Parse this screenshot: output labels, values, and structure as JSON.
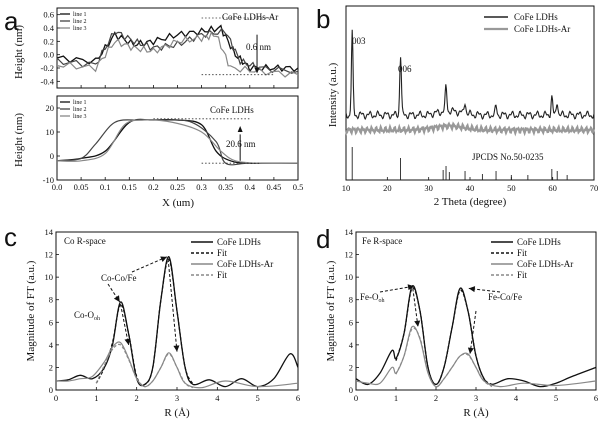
{
  "panels": {
    "a": {
      "letter": "a",
      "xlabel": "X (um)",
      "xticks": [
        "0.0",
        "0.05",
        "0.1",
        "0.15",
        "0.2",
        "0.25",
        "0.3",
        "0.35",
        "0.4",
        "0.45",
        "0.5"
      ],
      "top": {
        "ylabel": "Height (nm)",
        "yticks": [
          "0.6",
          "0.4",
          "0.2",
          "0.0",
          "-0.2",
          "-0.4"
        ],
        "legend": [
          "line 1",
          "line 2",
          "line 3"
        ],
        "title": "CoFe LDHs-Ar",
        "annotation": "0.6 nm"
      },
      "bottom": {
        "ylabel": "Height (nm)",
        "yticks": [
          "20",
          "10",
          "0",
          "-10"
        ],
        "legend": [
          "line 1",
          "line 2",
          "line 3"
        ],
        "title": "CoFe LDHs",
        "annotation": "20.6 nm"
      }
    },
    "b": {
      "letter": "b",
      "xlabel": "2 Theta (degree)",
      "ylabel": "Intensity (a.u.)",
      "xticks": [
        "10",
        "20",
        "30",
        "40",
        "50",
        "60",
        "70"
      ],
      "peaks": [
        "003",
        "006"
      ],
      "legend": [
        "CoFe LDHs",
        "CoFe LDHs-Ar"
      ],
      "ref": "JPCDS No.50-0235"
    },
    "c": {
      "letter": "c",
      "xlabel": "R (Å)",
      "ylabel": "Magnitude of FT (a.u.)",
      "yticks": [
        "0",
        "2",
        "4",
        "6",
        "8",
        "10",
        "12",
        "14"
      ],
      "xticks": [
        "0",
        "1",
        "2",
        "3",
        "4",
        "5",
        "6"
      ],
      "title": "Co  R-space",
      "legend": [
        "CoFe LDHs",
        "Fit",
        "CoFe LDHs-Ar",
        "Fit"
      ],
      "ann1": "Co-Co/Fe",
      "ann2": "Co-O",
      "ann2_sub": "oh"
    },
    "d": {
      "letter": "d",
      "xlabel": "R (Å)",
      "ylabel": "Magnitude of FT (a.u.)",
      "yticks": [
        "0",
        "2",
        "4",
        "6",
        "8",
        "10",
        "12",
        "14"
      ],
      "xticks": [
        "0",
        "1",
        "2",
        "3",
        "4",
        "5",
        "6"
      ],
      "title": "Fe R-space",
      "legend": [
        "CoFe LDHs",
        "Fit",
        "CoFe LDHs-Ar",
        "Fit"
      ],
      "ann1": "Fe-O",
      "ann1_sub": "oh",
      "ann2": "Fe-Co/Fe"
    }
  },
  "chart_data": [
    {
      "type": "line",
      "panel": "a-top",
      "title": "CoFe LDHs-Ar",
      "xlabel": "X (um)",
      "ylabel": "Height (nm)",
      "xlim": [
        0,
        0.5
      ],
      "ylim": [
        -0.5,
        0.7
      ],
      "series": [
        {
          "name": "line 1",
          "x": [
            0.0,
            0.08,
            0.12,
            0.16,
            0.2,
            0.25,
            0.3,
            0.34,
            0.37,
            0.4,
            0.45,
            0.5
          ],
          "y": [
            -0.05,
            -0.1,
            0.3,
            0.15,
            0.2,
            0.3,
            0.35,
            0.4,
            0.0,
            -0.2,
            -0.2,
            -0.2
          ]
        },
        {
          "name": "line 2",
          "x": [
            0.0,
            0.08,
            0.12,
            0.16,
            0.2,
            0.25,
            0.3,
            0.35,
            0.38,
            0.42,
            0.5
          ],
          "y": [
            -0.1,
            -0.15,
            0.35,
            0.2,
            0.1,
            0.15,
            0.3,
            0.35,
            -0.1,
            -0.2,
            -0.25
          ]
        },
        {
          "name": "line 3",
          "x": [
            0.0,
            0.08,
            0.12,
            0.16,
            0.2,
            0.25,
            0.3,
            0.33,
            0.36,
            0.42,
            0.5
          ],
          "y": [
            -0.15,
            -0.2,
            0.2,
            0.1,
            0.05,
            0.2,
            0.25,
            0.3,
            -0.2,
            -0.25,
            -0.3
          ]
        }
      ]
    },
    {
      "type": "line",
      "panel": "a-bottom",
      "title": "CoFe LDHs",
      "xlabel": "X (um)",
      "ylabel": "Height (nm)",
      "xlim": [
        0,
        0.5
      ],
      "ylim": [
        -10,
        25
      ],
      "series": [
        {
          "name": "line 1",
          "x": [
            0.0,
            0.05,
            0.1,
            0.15,
            0.2,
            0.25,
            0.3,
            0.33,
            0.36,
            0.4,
            0.5
          ],
          "y": [
            -2,
            -1,
            2,
            14,
            15,
            15,
            13,
            2,
            -2,
            -3,
            -3
          ]
        },
        {
          "name": "line 2",
          "x": [
            0.0,
            0.05,
            0.08,
            0.12,
            0.17,
            0.22,
            0.28,
            0.33,
            0.35,
            0.4,
            0.5
          ],
          "y": [
            -2,
            -1,
            5,
            14,
            15,
            15,
            14,
            6,
            -3,
            -3,
            -3
          ]
        },
        {
          "name": "line 3",
          "x": [
            0.0,
            0.05,
            0.1,
            0.14,
            0.18,
            0.24,
            0.3,
            0.34,
            0.37,
            0.42,
            0.5
          ],
          "y": [
            -2,
            -2,
            1,
            13,
            15,
            14,
            10,
            2,
            -2,
            -3,
            -3
          ]
        }
      ]
    },
    {
      "type": "line",
      "panel": "b",
      "xlabel": "2 Theta (degree)",
      "ylabel": "Intensity (a.u.)",
      "xlim": [
        10,
        70
      ],
      "series": [
        {
          "name": "CoFe LDHs",
          "peaks_2theta": [
            11.5,
            23.2,
            34.2,
            38.8,
            46.3,
            59.8,
            61.1
          ]
        },
        {
          "name": "CoFe LDHs-Ar"
        }
      ],
      "reference_lines_2theta": [
        11.5,
        23.2,
        33.5,
        34.2,
        35.0,
        38.8,
        43.0,
        46.3,
        50.0,
        54.0,
        59.8,
        61.1,
        63.5
      ]
    },
    {
      "type": "line",
      "panel": "c",
      "xlabel": "R (Å)",
      "ylabel": "Magnitude of FT (a.u.)",
      "xlim": [
        0,
        6
      ],
      "ylim": [
        0,
        14
      ],
      "series": [
        {
          "name": "CoFe LDHs",
          "x": [
            0,
            0.3,
            0.6,
            0.9,
            1.2,
            1.4,
            1.6,
            1.8,
            2.0,
            2.2,
            2.4,
            2.6,
            2.8,
            3.0,
            3.2,
            3.4,
            3.8,
            4.2,
            4.6,
            5.0,
            5.4,
            5.8,
            6.0
          ],
          "y": [
            0.8,
            0.9,
            1.3,
            1.0,
            2.0,
            4.0,
            7.8,
            5.0,
            1.0,
            0.5,
            2.0,
            8.0,
            11.8,
            7.0,
            2.0,
            0.5,
            0.9,
            0.3,
            1.0,
            0.3,
            1.0,
            3.2,
            2.0
          ]
        },
        {
          "name": "Fit",
          "x": [
            1.0,
            1.2,
            1.4,
            1.6,
            1.8,
            2.0,
            2.2,
            2.4,
            2.6,
            2.8,
            3.0,
            3.2,
            3.4
          ],
          "y": [
            0.6,
            2.0,
            4.2,
            7.6,
            5.0,
            1.2,
            0.5,
            2.0,
            8.0,
            11.6,
            7.0,
            2.0,
            0.5
          ]
        },
        {
          "name": "CoFe LDHs-Ar",
          "x": [
            0,
            0.3,
            0.6,
            0.9,
            1.2,
            1.4,
            1.6,
            1.8,
            2.0,
            2.2,
            2.4,
            2.6,
            2.8,
            3.0,
            3.2,
            3.6,
            4.2,
            5.0,
            6.0
          ],
          "y": [
            0.8,
            0.8,
            1.0,
            1.2,
            2.5,
            3.8,
            4.2,
            2.8,
            1.0,
            0.3,
            0.8,
            2.0,
            3.3,
            2.0,
            0.6,
            0.2,
            0.8,
            0.3,
            0.6
          ]
        },
        {
          "name": "Fit",
          "x": [
            1.0,
            1.2,
            1.4,
            1.6,
            1.8,
            2.0,
            2.2,
            2.4,
            2.6,
            2.8,
            3.0,
            3.2,
            3.4
          ],
          "y": [
            0.6,
            2.2,
            3.6,
            4.0,
            2.7,
            1.0,
            0.3,
            0.8,
            2.0,
            3.2,
            2.0,
            0.6,
            0.2
          ]
        }
      ]
    },
    {
      "type": "line",
      "panel": "d",
      "xlabel": "R (Å)",
      "ylabel": "Magnitude of FT (a.u.)",
      "xlim": [
        0,
        6
      ],
      "ylim": [
        0,
        14
      ],
      "series": [
        {
          "name": "CoFe LDHs",
          "x": [
            0,
            0.3,
            0.6,
            0.9,
            1.0,
            1.2,
            1.4,
            1.6,
            1.8,
            2.0,
            2.2,
            2.4,
            2.6,
            2.8,
            3.0,
            3.2,
            3.4,
            3.8,
            4.2,
            4.6,
            5.0,
            5.4,
            6.0
          ],
          "y": [
            1.0,
            0.5,
            1.5,
            3.5,
            2.8,
            5.0,
            9.2,
            7.0,
            2.0,
            0.5,
            2.0,
            5.5,
            9.0,
            7.0,
            3.0,
            1.0,
            0.5,
            1.0,
            0.8,
            0.3,
            0.6,
            1.2,
            2.0
          ]
        },
        {
          "name": "Fit",
          "x": [
            1.0,
            1.2,
            1.4,
            1.6,
            1.8,
            2.0,
            2.2,
            2.4,
            2.6,
            2.8,
            3.0,
            3.2,
            3.4
          ],
          "y": [
            2.6,
            5.0,
            9.0,
            7.0,
            2.0,
            0.5,
            2.0,
            5.5,
            8.8,
            7.0,
            3.0,
            1.0,
            0.5
          ]
        },
        {
          "name": "CoFe LDHs-Ar",
          "x": [
            0,
            0.3,
            0.6,
            0.9,
            1.0,
            1.2,
            1.4,
            1.6,
            1.8,
            2.0,
            2.2,
            2.4,
            2.6,
            2.8,
            3.0,
            3.2,
            3.6,
            4.2,
            5.0,
            6.0
          ],
          "y": [
            0.8,
            0.6,
            0.6,
            2.0,
            1.5,
            3.0,
            5.6,
            4.5,
            1.5,
            0.3,
            1.0,
            2.0,
            3.0,
            3.2,
            2.0,
            0.8,
            0.3,
            0.6,
            0.4,
            0.8
          ]
        },
        {
          "name": "Fit",
          "x": [
            1.0,
            1.2,
            1.4,
            1.6,
            1.8,
            2.0,
            2.2,
            2.4,
            2.6,
            2.8,
            3.0,
            3.2,
            3.4
          ],
          "y": [
            1.4,
            3.0,
            5.4,
            4.6,
            1.6,
            0.3,
            1.0,
            2.0,
            3.0,
            3.1,
            2.0,
            0.8,
            0.3
          ]
        }
      ]
    }
  ]
}
